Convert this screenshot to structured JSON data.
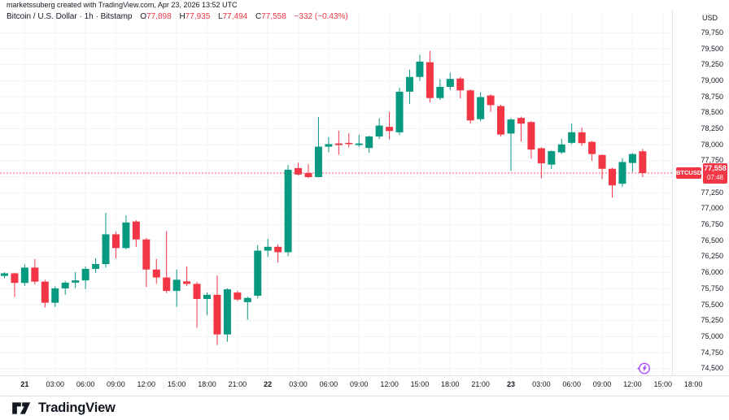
{
  "attribution": "marketssuberg created with TradingView.com, Apr 23, 2026 13:52 UTC",
  "legend": {
    "title": "Bitcoin / U.S. Dollar · 1h · Bitstamp",
    "ohlc": [
      {
        "k": "O",
        "v": "77,898"
      },
      {
        "k": "H",
        "v": "77,935"
      },
      {
        "k": "L",
        "v": "77,494"
      },
      {
        "k": "C",
        "v": "77,558"
      }
    ],
    "change": "−332 (−0.43%)"
  },
  "price_axis": {
    "currency": "USD",
    "labels": [
      {
        "v": 79750,
        "t": "79,750"
      },
      {
        "v": 79500,
        "t": "79,500"
      },
      {
        "v": 79250,
        "t": "79,250"
      },
      {
        "v": 79000,
        "t": "79,000"
      },
      {
        "v": 78750,
        "t": "78,750"
      },
      {
        "v": 78500,
        "t": "78,500"
      },
      {
        "v": 78250,
        "t": "78,250"
      },
      {
        "v": 78000,
        "t": "78,000"
      },
      {
        "v": 77750,
        "t": "77,750"
      },
      {
        "v": 77250,
        "t": "77,250"
      },
      {
        "v": 77000,
        "t": "77,000"
      },
      {
        "v": 76750,
        "t": "76,750"
      },
      {
        "v": 76500,
        "t": "76,500"
      },
      {
        "v": 76250,
        "t": "76,250"
      },
      {
        "v": 76000,
        "t": "76,000"
      },
      {
        "v": 75750,
        "t": "75,750"
      },
      {
        "v": 75500,
        "t": "75,500"
      },
      {
        "v": 75250,
        "t": "75,250"
      },
      {
        "v": 75000,
        "t": "75,000"
      },
      {
        "v": 74750,
        "t": "74,750"
      },
      {
        "v": 74500,
        "t": "74,500"
      }
    ],
    "price_label": {
      "symbol": "BTCUSD",
      "price": "77,558",
      "countdown": "07:48"
    }
  },
  "time_axis": {
    "ticks": [
      {
        "i": 2,
        "label": "21",
        "bold": true
      },
      {
        "i": 5,
        "label": "03:00",
        "bold": false
      },
      {
        "i": 8,
        "label": "06:00",
        "bold": false
      },
      {
        "i": 11,
        "label": "09:00",
        "bold": false
      },
      {
        "i": 14,
        "label": "12:00",
        "bold": false
      },
      {
        "i": 17,
        "label": "15:00",
        "bold": false
      },
      {
        "i": 20,
        "label": "18:00",
        "bold": false
      },
      {
        "i": 23,
        "label": "21:00",
        "bold": false
      },
      {
        "i": 26,
        "label": "22",
        "bold": true
      },
      {
        "i": 29,
        "label": "03:00",
        "bold": false
      },
      {
        "i": 32,
        "label": "06:00",
        "bold": false
      },
      {
        "i": 35,
        "label": "09:00",
        "bold": false
      },
      {
        "i": 38,
        "label": "12:00",
        "bold": false
      },
      {
        "i": 41,
        "label": "15:00",
        "bold": false
      },
      {
        "i": 44,
        "label": "18:00",
        "bold": false
      },
      {
        "i": 47,
        "label": "21:00",
        "bold": false
      },
      {
        "i": 50,
        "label": "23",
        "bold": true
      },
      {
        "i": 53,
        "label": "03:00",
        "bold": false
      },
      {
        "i": 56,
        "label": "06:00",
        "bold": false
      },
      {
        "i": 59,
        "label": "09:00",
        "bold": false
      },
      {
        "i": 62,
        "label": "12:00",
        "bold": false
      },
      {
        "i": 65,
        "label": "15:00",
        "bold": false
      },
      {
        "i": 68,
        "label": "18:00",
        "bold": false
      }
    ]
  },
  "footer": {
    "brand": "TradingView"
  },
  "colors": {
    "up": "#089981",
    "down": "#f23645",
    "grid": "#f0f3fa",
    "axis_border": "#e0e3eb",
    "axis_text": "#131722",
    "price_line": "#f23645",
    "badge_bg": "#f23645",
    "accent_purple": "#a64dff"
  },
  "chart_data": {
    "type": "candlestick",
    "title": "Bitcoin / U.S. Dollar",
    "symbol": "BTCUSD",
    "exchange": "Bitstamp",
    "timeframe": "1h",
    "start_time": "Apr 20 22:00 UTC",
    "end_time": "Apr 23 13:00 UTC",
    "current_price": 77558,
    "last_change": -332,
    "last_change_pct": -0.43,
    "ylim": [
      74500,
      79750
    ],
    "y_step": 250,
    "grid": true,
    "candles_ohlc": [
      [
        75950,
        76005,
        75915,
        75990
      ],
      [
        75990,
        76000,
        75620,
        75840
      ],
      [
        75840,
        76130,
        75795,
        76080
      ],
      [
        76080,
        76215,
        75815,
        75860
      ],
      [
        75860,
        75890,
        75455,
        75530
      ],
      [
        75530,
        75790,
        75465,
        75755
      ],
      [
        75755,
        75870,
        75655,
        75845
      ],
      [
        75845,
        76010,
        75760,
        75880
      ],
      [
        75880,
        76100,
        75745,
        76060
      ],
      [
        76060,
        76225,
        76000,
        76135
      ],
      [
        76135,
        76935,
        76080,
        76600
      ],
      [
        76600,
        76640,
        76225,
        76385
      ],
      [
        76385,
        76895,
        76365,
        76785
      ],
      [
        76800,
        76820,
        76400,
        76520
      ],
      [
        76520,
        76545,
        75775,
        76050
      ],
      [
        76050,
        76215,
        75825,
        75925
      ],
      [
        75925,
        76650,
        75680,
        75715
      ],
      [
        75715,
        76050,
        75465,
        75890
      ],
      [
        75865,
        76100,
        75790,
        75825
      ],
      [
        75825,
        75855,
        75140,
        75590
      ],
      [
        75590,
        75690,
        75340,
        75655
      ],
      [
        75655,
        75955,
        74870,
        75035
      ],
      [
        75035,
        75755,
        74920,
        75740
      ],
      [
        75690,
        75720,
        75555,
        75580
      ],
      [
        75540,
        75625,
        75265,
        75605
      ],
      [
        75640,
        76430,
        75600,
        76345
      ],
      [
        76345,
        76530,
        76245,
        76405
      ],
      [
        76405,
        76440,
        76160,
        76320
      ],
      [
        76320,
        77685,
        76260,
        77610
      ],
      [
        77635,
        77720,
        77520,
        77535
      ],
      [
        77558,
        77695,
        77480,
        77495
      ],
      [
        77495,
        78435,
        77490,
        77970
      ],
      [
        77970,
        78120,
        77885,
        78010
      ],
      [
        78020,
        78220,
        77845,
        77995
      ],
      [
        78030,
        78185,
        77960,
        78010
      ],
      [
        77995,
        78155,
        77965,
        78020
      ],
      [
        77950,
        78140,
        77875,
        78130
      ],
      [
        78130,
        78415,
        78090,
        78300
      ],
      [
        78280,
        78515,
        78085,
        78215
      ],
      [
        78195,
        78895,
        78150,
        78830
      ],
      [
        78830,
        79175,
        78640,
        79060
      ],
      [
        79060,
        79405,
        79000,
        79300
      ],
      [
        79290,
        79470,
        78660,
        78730
      ],
      [
        78730,
        79025,
        78700,
        78905
      ],
      [
        78905,
        79125,
        78855,
        79030
      ],
      [
        79035,
        79060,
        78725,
        78850
      ],
      [
        78850,
        78865,
        78330,
        78380
      ],
      [
        78400,
        78820,
        78370,
        78745
      ],
      [
        78770,
        78790,
        78515,
        78620
      ],
      [
        78605,
        78625,
        78130,
        78160
      ],
      [
        78175,
        78420,
        77590,
        78395
      ],
      [
        78420,
        78440,
        78050,
        78330
      ],
      [
        78355,
        78370,
        77780,
        77925
      ],
      [
        77945,
        77960,
        77475,
        77710
      ],
      [
        77690,
        77915,
        77620,
        77900
      ],
      [
        77880,
        78095,
        77855,
        78005
      ],
      [
        78030,
        78330,
        78010,
        78195
      ],
      [
        78195,
        78270,
        77985,
        78025
      ],
      [
        78045,
        78060,
        77750,
        77855
      ],
      [
        77840,
        77850,
        77460,
        77625
      ],
      [
        77625,
        77640,
        77175,
        77365
      ],
      [
        77390,
        77790,
        77340,
        77730
      ],
      [
        77715,
        77870,
        77575,
        77855
      ],
      [
        77898,
        77935,
        77494,
        77558
      ]
    ]
  }
}
